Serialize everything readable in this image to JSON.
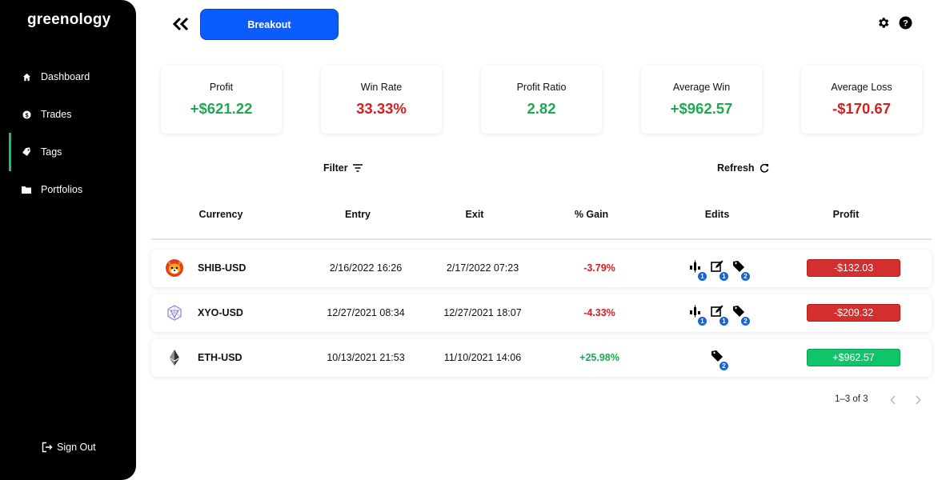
{
  "sidebar": {
    "brand": "greenology",
    "items": [
      {
        "label": "Dashboard",
        "icon": "home-icon"
      },
      {
        "label": "Trades",
        "icon": "dollar-icon"
      },
      {
        "label": "Tags",
        "icon": "tag-icon",
        "active": true
      },
      {
        "label": "Portfolios",
        "icon": "folder-icon"
      }
    ],
    "signout": "Sign Out"
  },
  "header": {
    "breakout_label": "Breakout"
  },
  "stats": [
    {
      "label": "Profit",
      "value": "+$621.22",
      "tone": "green"
    },
    {
      "label": "Win Rate",
      "value": "33.33%",
      "tone": "red"
    },
    {
      "label": "Profit Ratio",
      "value": "2.82",
      "tone": "green"
    },
    {
      "label": "Average Win",
      "value": "+$962.57",
      "tone": "green"
    },
    {
      "label": "Average Loss",
      "value": "-$170.67",
      "tone": "red"
    }
  ],
  "toolbar": {
    "filter": "Filter",
    "refresh": "Refresh"
  },
  "table": {
    "columns": [
      "Currency",
      "Entry",
      "Exit",
      "% Gain",
      "Edits",
      "Profit"
    ],
    "rows": [
      {
        "currency": "SHIB-USD",
        "entry": "2/16/2022 16:26",
        "exit": "2/17/2022 07:23",
        "gain": "-3.79%",
        "edits": [
          "1",
          "1",
          "2"
        ],
        "profit": "-$132.03"
      },
      {
        "currency": "XYO-USD",
        "entry": "12/27/2021 08:34",
        "exit": "12/27/2021 18:07",
        "gain": "-4.33%",
        "edits": [
          "1",
          "1",
          "2"
        ],
        "profit": "-$209.32"
      },
      {
        "currency": "ETH-USD",
        "entry": "10/13/2021 21:53",
        "exit": "11/10/2021 14:06",
        "gain": "+25.98%",
        "edits": [
          "2"
        ],
        "profit": "+$962.57"
      }
    ]
  },
  "pagination": {
    "range": "1–3 of 3"
  },
  "colors": {
    "accent": "#0a5cff",
    "positive": "#1fa854",
    "negative": "#d32020",
    "sidebar": "#000000"
  }
}
